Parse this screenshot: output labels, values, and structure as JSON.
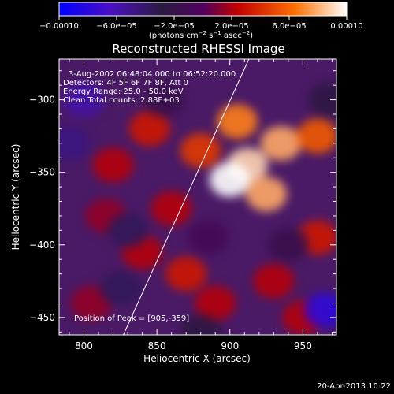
{
  "colorbar": {
    "tick_labels": [
      "−0.00010",
      "−6.0e−05",
      "−2.0e−05",
      "2.0e−05",
      "6.0e−05",
      "0.00010"
    ],
    "tick_values": [
      -0.0001,
      -6e-05,
      -2e-05,
      2e-05,
      6e-05,
      0.0001
    ],
    "units_main": "(photons cm",
    "units_sup1": "−2",
    "units_mid1": " s",
    "units_sup2": "−1",
    "units_mid2": " asec",
    "units_sup3": "−2",
    "units_end": ")"
  },
  "chart_data": {
    "type": "heatmap",
    "title": "Reconstructed RHESSI Image",
    "xlabel": "Heliocentric X (arcsec)",
    "ylabel": "Heliocentric Y (arcsec)",
    "xlim": [
      783,
      973
    ],
    "ylim": [
      -462,
      -272
    ],
    "x_ticks": [
      800,
      850,
      900,
      950
    ],
    "y_ticks": [
      -300,
      -350,
      -400,
      -450
    ],
    "x_tick_labels": [
      "800",
      "850",
      "900",
      "950"
    ],
    "y_tick_labels": [
      "−300",
      "−350",
      "−400",
      "−450"
    ],
    "value_range": [
      -0.0001,
      0.0001
    ],
    "colormap": [
      "#0000ff",
      "#4b10c0",
      "#2a1a40",
      "#500060",
      "#c00000",
      "#ff7000",
      "#ffffff"
    ],
    "annotations": [
      "3-Aug-2002 06:48:04.000 to 06:52:20.000",
      "Detectors: 4F 5F 6F 7F 8F, Att 0",
      "Energy Range: 25.0 - 50.0 keV",
      "Clean     Total counts: 2.88E+03"
    ],
    "peak_label": "Position of Peak = [905,-359]",
    "peak_position": [
      905,
      -359
    ],
    "limb_line": [
      [
        827,
        -462
      ],
      [
        913,
        -272
      ]
    ],
    "blobs": [
      {
        "x": 912,
        "y": -345,
        "v": 9e-05
      },
      {
        "x": 900,
        "y": -355,
        "v": 0.0001
      },
      {
        "x": 935,
        "y": -330,
        "v": 8e-05
      },
      {
        "x": 960,
        "y": -325,
        "v": 6e-05
      },
      {
        "x": 905,
        "y": -315,
        "v": 7e-05
      },
      {
        "x": 925,
        "y": -365,
        "v": 8e-05
      },
      {
        "x": 880,
        "y": -335,
        "v": 5e-05
      },
      {
        "x": 860,
        "y": -375,
        "v": 3e-05
      },
      {
        "x": 845,
        "y": -320,
        "v": 4e-05
      },
      {
        "x": 820,
        "y": -345,
        "v": 3e-05
      },
      {
        "x": 815,
        "y": -380,
        "v": 2e-05
      },
      {
        "x": 840,
        "y": -405,
        "v": 3e-05
      },
      {
        "x": 870,
        "y": -420,
        "v": 4e-05
      },
      {
        "x": 890,
        "y": -440,
        "v": 3e-05
      },
      {
        "x": 930,
        "y": -425,
        "v": 3e-05
      },
      {
        "x": 960,
        "y": -395,
        "v": 4e-05
      },
      {
        "x": 950,
        "y": -450,
        "v": 3e-05
      },
      {
        "x": 805,
        "y": -440,
        "v": 2e-05
      },
      {
        "x": 800,
        "y": -300,
        "v": -6e-05
      },
      {
        "x": 790,
        "y": -330,
        "v": -5e-05
      },
      {
        "x": 830,
        "y": -390,
        "v": -4e-05
      },
      {
        "x": 825,
        "y": -430,
        "v": -4e-05
      },
      {
        "x": 880,
        "y": -460,
        "v": -3e-05
      },
      {
        "x": 965,
        "y": -445,
        "v": -8e-05
      },
      {
        "x": 968,
        "y": -300,
        "v": -3e-05
      },
      {
        "x": 855,
        "y": -300,
        "v": -2e-05
      },
      {
        "x": 940,
        "y": -400,
        "v": -2e-05
      },
      {
        "x": 885,
        "y": -395,
        "v": -1e-05
      }
    ]
  },
  "timestamp": "20-Apr-2013 10:22"
}
